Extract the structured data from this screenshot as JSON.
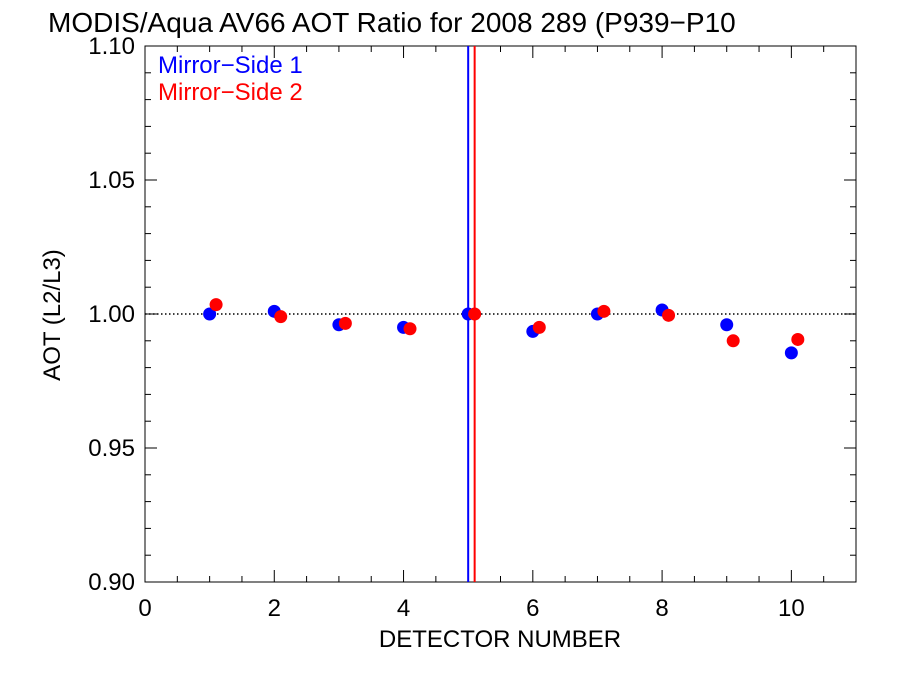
{
  "chart_data": {
    "type": "scatter",
    "title": "MODIS/Aqua AV66 AOT Ratio for 2008 289 (P939−P10",
    "xlabel": "DETECTOR NUMBER",
    "ylabel": "AOT (L2/L3)",
    "xlim": [
      0,
      11
    ],
    "ylim": [
      0.9,
      1.1
    ],
    "x_ticks": [
      0,
      2,
      4,
      6,
      8,
      10
    ],
    "x_tick_labels": [
      "0",
      "2",
      "4",
      "6",
      "8",
      "10"
    ],
    "y_ticks": [
      0.9,
      0.95,
      1.0,
      1.05,
      1.1
    ],
    "y_tick_labels": [
      "0.90",
      "0.95",
      "1.00",
      "1.05",
      "1.10"
    ],
    "reference_line": {
      "y": 1.0,
      "style": "dotted"
    },
    "vertical_lines": [
      {
        "x": 5.0,
        "color": "#0000ff"
      },
      {
        "x": 5.1,
        "color": "#ff0000"
      }
    ],
    "legend_position": "top-left",
    "series": [
      {
        "name": "Mirror−Side 1",
        "color": "#0000ff",
        "x": [
          1,
          2,
          3,
          4,
          5,
          6,
          7,
          8,
          9,
          10
        ],
        "y": [
          1.0,
          1.001,
          0.996,
          0.995,
          1.0,
          0.9935,
          1.0,
          1.0015,
          0.996,
          0.9855
        ]
      },
      {
        "name": "Mirror−Side 2",
        "color": "#ff0000",
        "x": [
          1.1,
          2.1,
          3.1,
          4.1,
          5.1,
          6.1,
          7.1,
          8.1,
          9.1,
          10.1
        ],
        "y": [
          1.0035,
          0.999,
          0.9965,
          0.9945,
          1.0,
          0.995,
          1.001,
          0.9995,
          0.99,
          0.9905
        ]
      }
    ]
  }
}
